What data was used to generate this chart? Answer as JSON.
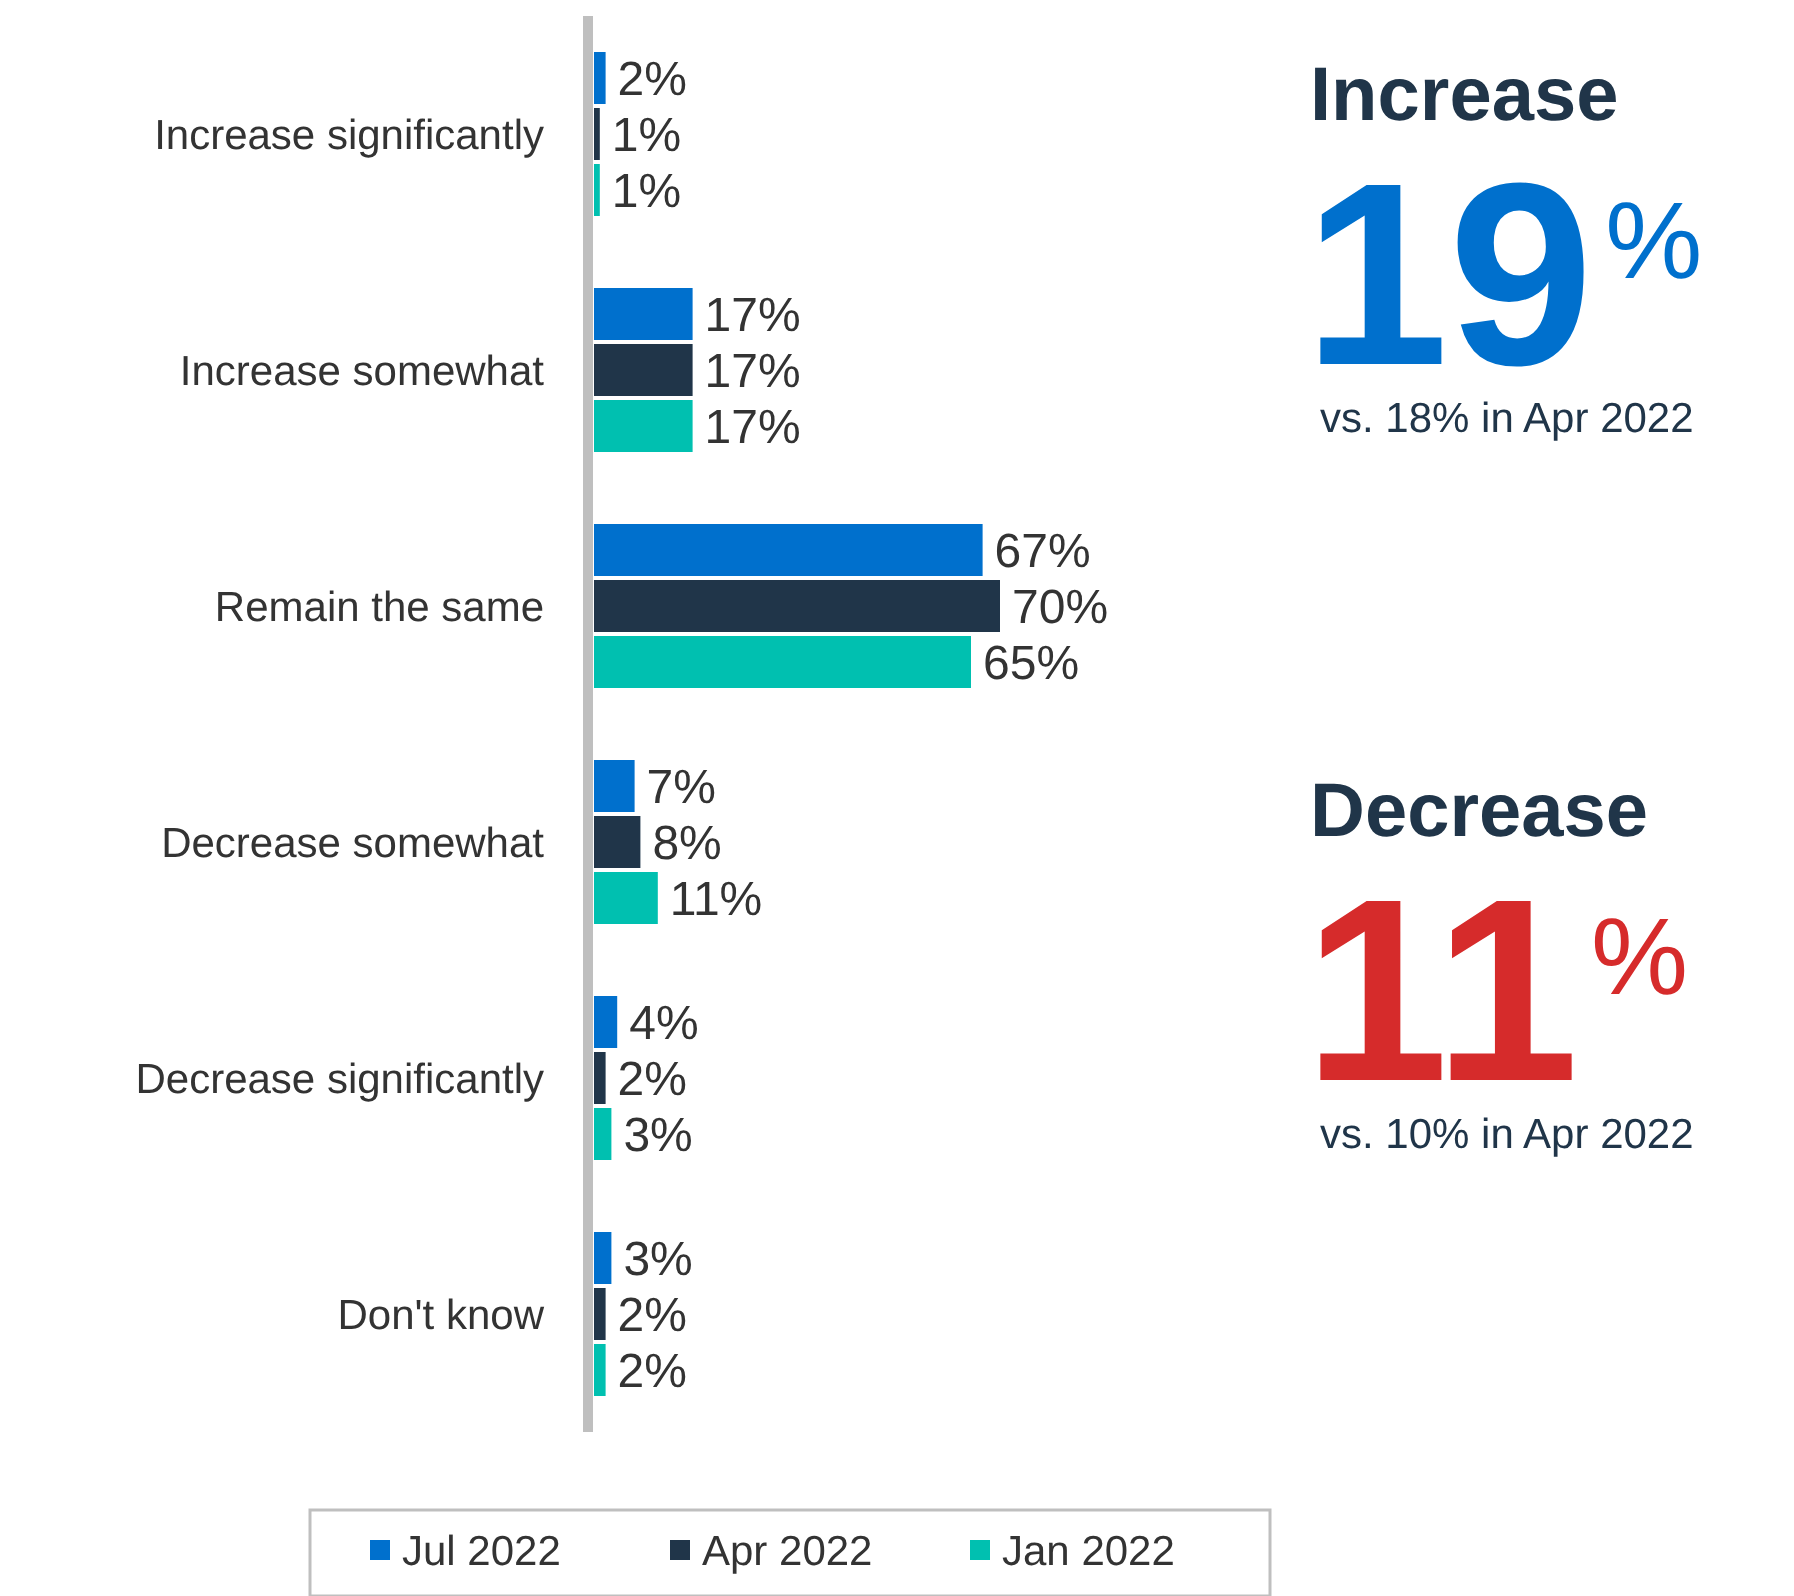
{
  "chart_data": {
    "type": "bar",
    "orientation": "horizontal",
    "categories": [
      "Increase significantly",
      "Increase somewhat",
      "Remain the same",
      "Decrease somewhat",
      "Decrease significantly",
      "Don't know"
    ],
    "series": [
      {
        "name": "Jul 2022",
        "color": "#0070cd",
        "values": [
          2,
          17,
          67,
          7,
          4,
          3
        ],
        "value_labels": [
          "2%",
          "17%",
          "67%",
          "7%",
          "4%",
          "3%"
        ]
      },
      {
        "name": "Apr 2022",
        "color": "#203549",
        "values": [
          1,
          17,
          70,
          8,
          2,
          2
        ],
        "value_labels": [
          "1%",
          "17%",
          "70%",
          "8%",
          "2%",
          "2%"
        ]
      },
      {
        "name": "Jan 2022",
        "color": "#00c0b0",
        "values": [
          1,
          17,
          65,
          11,
          3,
          2
        ],
        "value_labels": [
          "1%",
          "17%",
          "65%",
          "11%",
          "3%",
          "2%"
        ]
      }
    ],
    "legend": "bottom",
    "annotations": [
      "Increase",
      "19$^{%}$",
      "vs. 18% in Apr 2022",
      "Decrease",
      "11$^{%}$",
      "vs. 10% in Apr 2022"
    ]
  }
}
